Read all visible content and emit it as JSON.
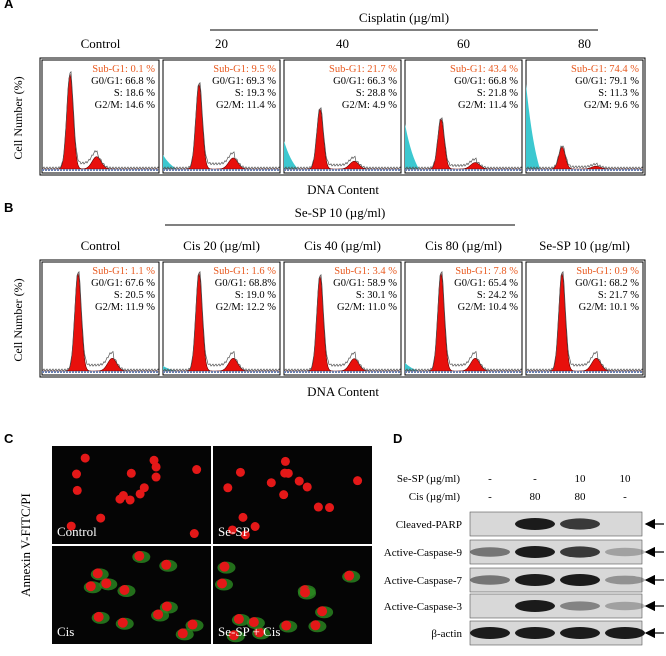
{
  "panel_a": {
    "label": "A",
    "group_label": "Cisplatin (µg/ml)",
    "y_label": "Cell Number (%)",
    "x_label": "DNA Content",
    "plots": [
      {
        "title": "Control",
        "sub_g1": "Sub-G1:  0.1 %",
        "g0g1": "G0/G1: 66.8 %",
        "s": "S: 18.6 %",
        "g2m": "G2/M: 14.6 %"
      },
      {
        "title": "20",
        "sub_g1": "Sub-G1:  9.5 %",
        "g0g1": "G0/G1: 69.3 %",
        "s": "S: 19.3 %",
        "g2m": "G2/M: 11.4 %"
      },
      {
        "title": "40",
        "sub_g1": "Sub-G1:  21.7 %",
        "g0g1": "G0/G1: 66.3 %",
        "s": "S: 28.8 %",
        "g2m": "G2/M: 4.9 %"
      },
      {
        "title": "60",
        "sub_g1": "Sub-G1:  43.4 %",
        "g0g1": "G0/G1: 66.8 %",
        "s": "S: 21.8 %",
        "g2m": "G2/M: 11.4 %"
      },
      {
        "title": "80",
        "sub_g1": "Sub-G1:  74.4 %",
        "g0g1": "G0/G1: 79.1 %",
        "s": "S: 11.3 %",
        "g2m": "G2/M: 9.6 %"
      }
    ]
  },
  "panel_b": {
    "label": "B",
    "group_label": "Se-SP 10 (µg/ml)",
    "y_label": "Cell Number (%)",
    "x_label": "DNA Content",
    "plots": [
      {
        "title": "Control",
        "sub_g1": "Sub-G1:  1.1 %",
        "g0g1": "G0/G1: 67.6 %",
        "s": "S: 20.5 %",
        "g2m": "G2/M: 11.9 %"
      },
      {
        "title": "Cis 20 (µg/ml)",
        "sub_g1": "Sub-G1:  1.6 %",
        "g0g1": "G0/G1: 68.8%",
        "s": "S: 19.0 %",
        "g2m": "G2/M: 12.2 %"
      },
      {
        "title": "Cis 40 (µg/ml)",
        "sub_g1": "Sub-G1:  3.4 %",
        "g0g1": "G0/G1: 58.9 %",
        "s": "S: 30.1 %",
        "g2m": "G2/M: 11.0 %"
      },
      {
        "title": "Cis 80 (µg/ml)",
        "sub_g1": "Sub-G1:  7.8 %",
        "g0g1": "G0/G1: 65.4 %",
        "s": "S: 24.2 %",
        "g2m": "G2/M: 10.4 %"
      },
      {
        "title": "Se-SP 10 (µg/ml)",
        "sub_g1": "Sub-G1:  0.9 %",
        "g0g1": "G0/G1: 68.2 %",
        "s": "S: 21.7 %",
        "g2m": "G2/M:  10.1 %"
      }
    ]
  },
  "panel_c": {
    "label": "C",
    "y_label": "Annexin V-FITC/PI",
    "images": [
      "Control",
      "Se-SP",
      "Cis",
      "Se-SP + Cis"
    ]
  },
  "panel_d": {
    "label": "D",
    "se_sp_label": "Se-SP (µg/ml)",
    "se_sp": [
      "-",
      "-",
      "10",
      "10"
    ],
    "cis_label": "Cis (µg/ml)",
    "cis": [
      "-",
      "80",
      "80",
      "-"
    ],
    "rows": [
      "Cleaved-PARP",
      "Active-Caspase-9",
      "Active-Caspase-7",
      "Active-Caspase-3",
      "β-actin"
    ]
  }
}
